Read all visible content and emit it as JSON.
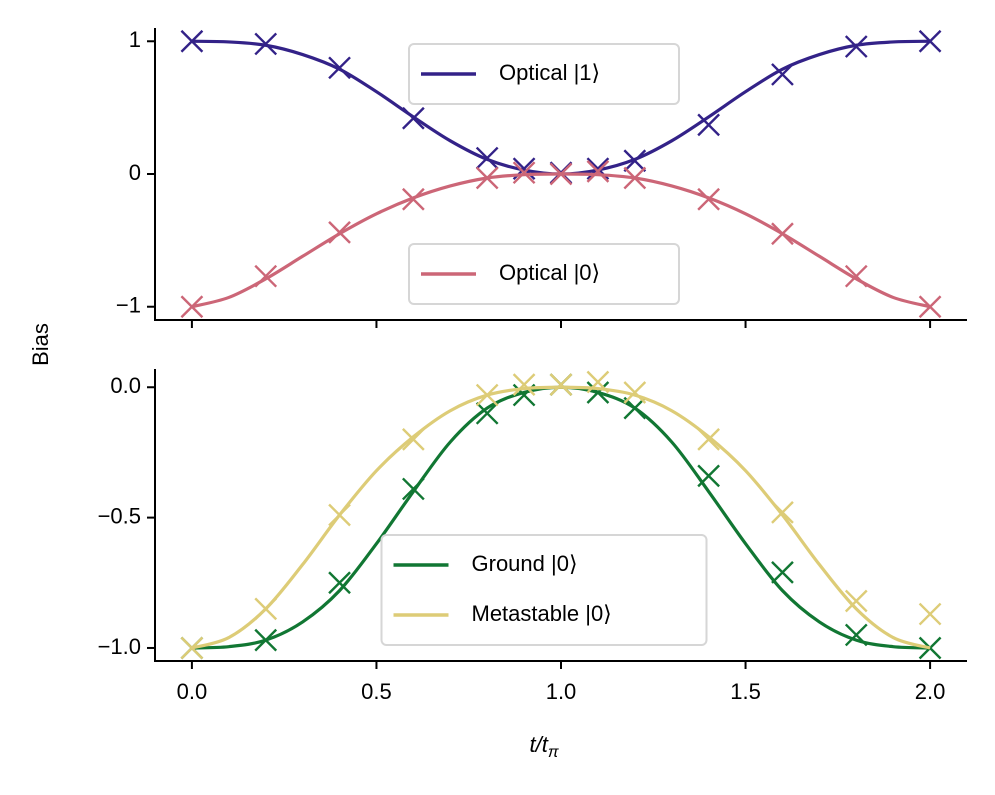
{
  "chart_data": [
    {
      "type": "line",
      "ylabel": "Bias",
      "xlim": [
        -0.1,
        2.1
      ],
      "ylim": [
        -1.1,
        1.1
      ],
      "xticks": [
        0,
        0.5,
        1,
        1.5,
        2
      ],
      "xtick_labels": false,
      "yticks": [
        {
          "value": -1,
          "label": "−1"
        },
        0,
        1
      ],
      "x": [
        0,
        0.1,
        0.2,
        0.3,
        0.4,
        0.5,
        0.6,
        0.7,
        0.8,
        0.9,
        1.0,
        1.1,
        1.2,
        1.3,
        1.4,
        1.5,
        1.6,
        1.7,
        1.8,
        1.9,
        2.0
      ],
      "marker_x": [
        0,
        0.2,
        0.4,
        0.6,
        0.8,
        0.9,
        1.0,
        1.1,
        1.2,
        1.4,
        1.6,
        1.8,
        2.0
      ],
      "legends": [
        {
          "loc": "upper center",
          "series": [
            0
          ]
        },
        {
          "loc": "lower center",
          "series": [
            1
          ]
        }
      ],
      "series": [
        {
          "name": "Optical |1⟩",
          "color": "#332288",
          "values": [
            1,
            0.995,
            0.97,
            0.9,
            0.79,
            0.62,
            0.43,
            0.25,
            0.11,
            0.03,
            0,
            0.03,
            0.11,
            0.25,
            0.43,
            0.62,
            0.79,
            0.9,
            0.97,
            0.995,
            1
          ],
          "marker_values": [
            1,
            0.98,
            0.8,
            0.42,
            0.12,
            0.04,
            0.01,
            0.04,
            0.1,
            0.37,
            0.75,
            0.96,
            1
          ]
        },
        {
          "name": "Optical |0⟩",
          "color": "#cc6677",
          "values": [
            -1,
            -0.93,
            -0.79,
            -0.62,
            -0.45,
            -0.3,
            -0.18,
            -0.09,
            -0.03,
            -0.005,
            0,
            -0.005,
            -0.03,
            -0.09,
            -0.18,
            -0.3,
            -0.45,
            -0.62,
            -0.79,
            -0.93,
            -1
          ],
          "marker_values": [
            -1,
            -0.77,
            -0.44,
            -0.19,
            -0.03,
            0.01,
            0,
            0.02,
            -0.03,
            -0.19,
            -0.45,
            -0.77,
            -1
          ]
        }
      ]
    },
    {
      "type": "line",
      "xlabel": {
        "main": "t/t",
        "sub": "π"
      },
      "xlim": [
        -0.1,
        2.1
      ],
      "ylim": [
        -1.05,
        0.07
      ],
      "xticks": [
        {
          "value": 0,
          "label": "0.0"
        },
        {
          "value": 0.5,
          "label": "0.5"
        },
        {
          "value": 1,
          "label": "1.0"
        },
        {
          "value": 1.5,
          "label": "1.5"
        },
        {
          "value": 2,
          "label": "2.0"
        }
      ],
      "yticks": [
        {
          "value": -1,
          "label": "−1.0"
        },
        {
          "value": -0.5,
          "label": "−0.5"
        },
        {
          "value": 0,
          "label": "0.0"
        }
      ],
      "x": [
        0,
        0.1,
        0.2,
        0.3,
        0.4,
        0.5,
        0.6,
        0.7,
        0.8,
        0.9,
        1.0,
        1.1,
        1.2,
        1.3,
        1.4,
        1.5,
        1.6,
        1.7,
        1.8,
        1.9,
        2.0
      ],
      "marker_x": [
        0,
        0.2,
        0.4,
        0.6,
        0.8,
        0.9,
        1.0,
        1.1,
        1.2,
        1.4,
        1.6,
        1.8,
        2.0
      ],
      "legends": [
        {
          "loc": "lower center",
          "series": [
            0,
            1
          ]
        }
      ],
      "series": [
        {
          "name": "Ground |0⟩",
          "color": "#117733",
          "values": [
            -1,
            -0.995,
            -0.97,
            -0.9,
            -0.78,
            -0.6,
            -0.4,
            -0.21,
            -0.08,
            -0.02,
            0,
            -0.02,
            -0.08,
            -0.21,
            -0.4,
            -0.6,
            -0.78,
            -0.9,
            -0.97,
            -0.995,
            -1
          ],
          "marker_values": [
            -1,
            -0.97,
            -0.75,
            -0.39,
            -0.1,
            -0.03,
            0.01,
            -0.02,
            -0.08,
            -0.34,
            -0.71,
            -0.95,
            -1
          ]
        },
        {
          "name": "Metastable |0⟩",
          "color": "#ddcc77",
          "values": [
            -1,
            -0.96,
            -0.85,
            -0.68,
            -0.49,
            -0.32,
            -0.19,
            -0.09,
            -0.03,
            -0.005,
            0,
            -0.005,
            -0.03,
            -0.09,
            -0.19,
            -0.32,
            -0.49,
            -0.68,
            -0.85,
            -0.96,
            -1
          ],
          "marker_values": [
            -1,
            -0.85,
            -0.49,
            -0.2,
            -0.03,
            0.01,
            0.01,
            0.02,
            -0.02,
            -0.2,
            -0.48,
            -0.82,
            -0.87
          ]
        }
      ]
    }
  ]
}
